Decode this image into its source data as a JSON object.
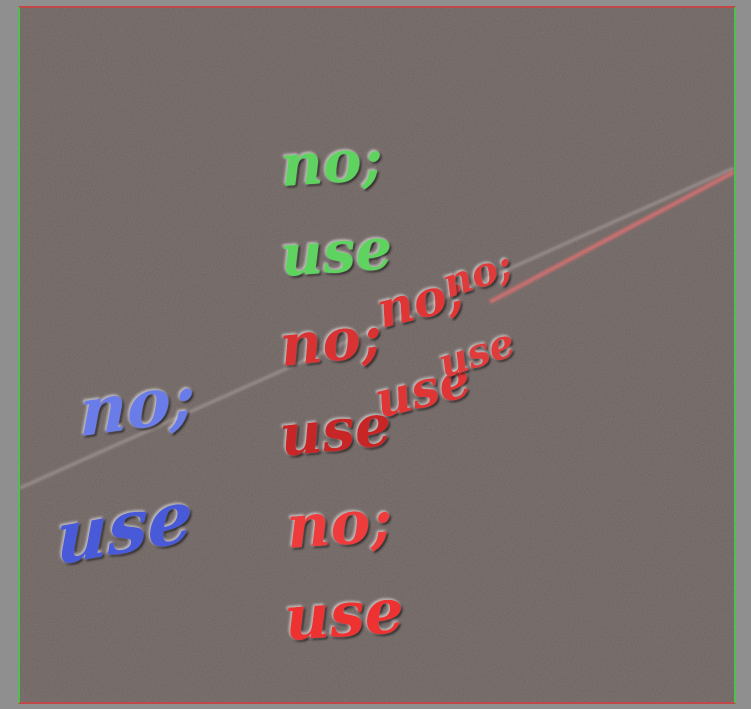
{
  "scene": {
    "colors": {
      "background_outer": "#8f8f8f",
      "surface": "#6a605e",
      "border_x": "#c04848",
      "border_y": "#4fbf4f",
      "axis_x": "#d86868",
      "axis_y": "#9a9290",
      "axis_z": "#9a9290",
      "green_glyph": "#5fd35f",
      "red_glyph": "#e03030",
      "blue_glyph": "#5a6be0"
    },
    "labels": {
      "green_top": "no;",
      "green_bottom": "use",
      "blue_top": "no;",
      "blue_bottom": "use",
      "red_center_top": "no;",
      "red_center_bottom": "use",
      "red_row_1_top": "no;",
      "red_row_1_bottom": "use",
      "red_row_2_top": "no;",
      "red_row_2_bottom": "use",
      "red_below_top": "no;",
      "red_below_bottom": "use"
    }
  }
}
